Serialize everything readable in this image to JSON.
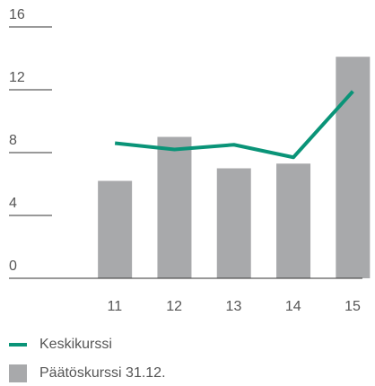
{
  "chart_data": {
    "type": "bar",
    "categories": [
      "11",
      "12",
      "13",
      "14",
      "15"
    ],
    "series": [
      {
        "name": "Päätöskurssi 31.12.",
        "type": "bar",
        "color": "#a8a9ab",
        "values": [
          6.2,
          9.0,
          7.0,
          7.3,
          14.1
        ]
      },
      {
        "name": "Keskikurssi",
        "type": "line",
        "color": "#0a9478",
        "values": [
          8.6,
          8.2,
          8.5,
          7.7,
          11.9
        ]
      }
    ],
    "ylim": [
      0,
      16
    ],
    "yticks": [
      0,
      4,
      8,
      12,
      16
    ]
  }
}
